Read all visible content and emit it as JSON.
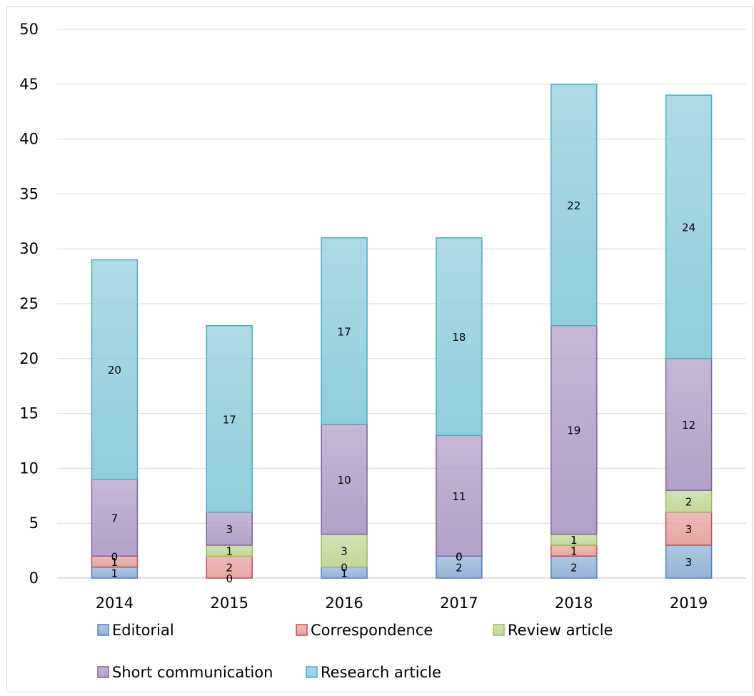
{
  "chart_data": {
    "type": "bar",
    "stacked": true,
    "categories": [
      "2014",
      "2015",
      "2016",
      "2017",
      "2018",
      "2019"
    ],
    "series": [
      {
        "name": "Editorial",
        "values": [
          1,
          0,
          1,
          2,
          2,
          3
        ],
        "color": "#95b3d7",
        "stroke": "#4f81bd"
      },
      {
        "name": "Correspondence",
        "values": [
          1,
          2,
          0,
          0,
          1,
          3
        ],
        "color": "#e6a5a3",
        "stroke": "#c0504d"
      },
      {
        "name": "Review article",
        "values": [
          0,
          1,
          3,
          0,
          1,
          2
        ],
        "color": "#c4d79b",
        "stroke": "#9bbb59"
      },
      {
        "name": "Short communication",
        "values": [
          7,
          3,
          10,
          11,
          19,
          12
        ],
        "color": "#b1a0c7",
        "stroke": "#8064a2"
      },
      {
        "name": "Research article",
        "values": [
          20,
          17,
          17,
          18,
          22,
          24
        ],
        "color": "#92cddc",
        "stroke": "#4bacc6"
      }
    ],
    "ylim": [
      0,
      50
    ],
    "yticks": [
      0,
      5,
      10,
      15,
      20,
      25,
      30,
      35,
      40,
      45,
      50
    ],
    "grid": true,
    "legend_position": "bottom",
    "title": "",
    "xlabel": "",
    "ylabel": ""
  }
}
